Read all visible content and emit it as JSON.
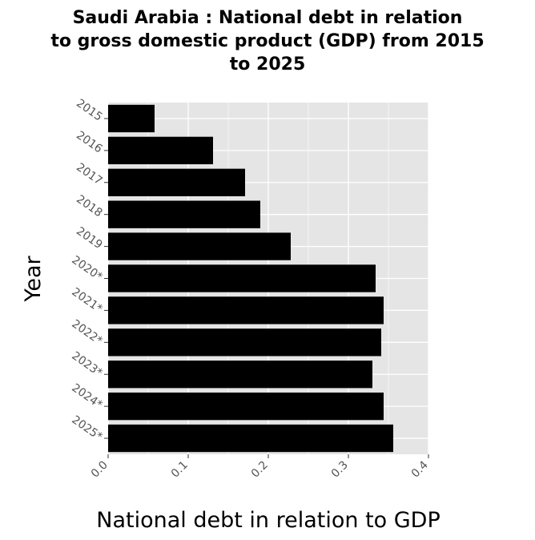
{
  "chart_data": {
    "type": "bar",
    "orientation": "horizontal",
    "title_lines": [
      "Saudi Arabia : National debt in relation",
      "to gross domestic product (GDP) from 2015",
      "to 2025"
    ],
    "title": "Saudi Arabia : National debt in relation to gross domestic product (GDP) from 2015 to 2025",
    "xlabel": "National debt in relation to GDP",
    "ylabel": "Year",
    "categories": [
      "2015",
      "2016",
      "2017",
      "2018",
      "2019",
      "2020*",
      "2021*",
      "2022*",
      "2023*",
      "2024*",
      "2025*"
    ],
    "values": [
      0.058,
      0.131,
      0.171,
      0.19,
      0.228,
      0.334,
      0.344,
      0.341,
      0.33,
      0.344,
      0.356
    ],
    "xlim": [
      0,
      0.4
    ],
    "xticks": [
      "0.0",
      "0.1",
      "0.2",
      "0.3",
      "0.4"
    ],
    "grid": true,
    "bar_color": "#000000",
    "panel_color": "#e5e5e5",
    "grid_color": "#ffffff"
  }
}
